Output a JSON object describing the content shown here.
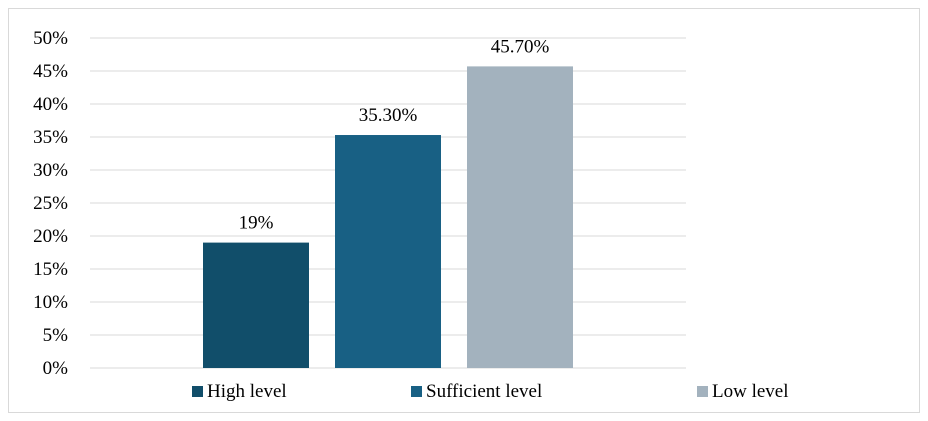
{
  "chart_data": {
    "type": "bar",
    "categories": [
      "High level",
      "Sufficient level",
      "Low level"
    ],
    "values": [
      19,
      35.3,
      45.7
    ],
    "data_labels": [
      "19%",
      "35.30%",
      "45.70%"
    ],
    "colors": [
      "#114e6a",
      "#186084",
      "#a3b2be"
    ],
    "ylim": [
      0,
      50
    ],
    "yticks": [
      0,
      5,
      10,
      15,
      20,
      25,
      30,
      35,
      40,
      45,
      50
    ],
    "ytick_labels": [
      "0%",
      "5%",
      "10%",
      "15%",
      "20%",
      "25%",
      "30%",
      "35%",
      "40%",
      "45%",
      "50%"
    ],
    "grid": true,
    "legend_position": "bottom",
    "title": "",
    "xlabel": "",
    "ylabel": ""
  }
}
